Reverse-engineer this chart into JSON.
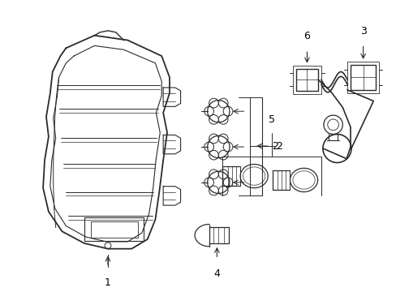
{
  "background_color": "#ffffff",
  "line_color": "#2a2a2a",
  "label_color": "#000000",
  "fig_width": 4.89,
  "fig_height": 3.6,
  "dpi": 100
}
